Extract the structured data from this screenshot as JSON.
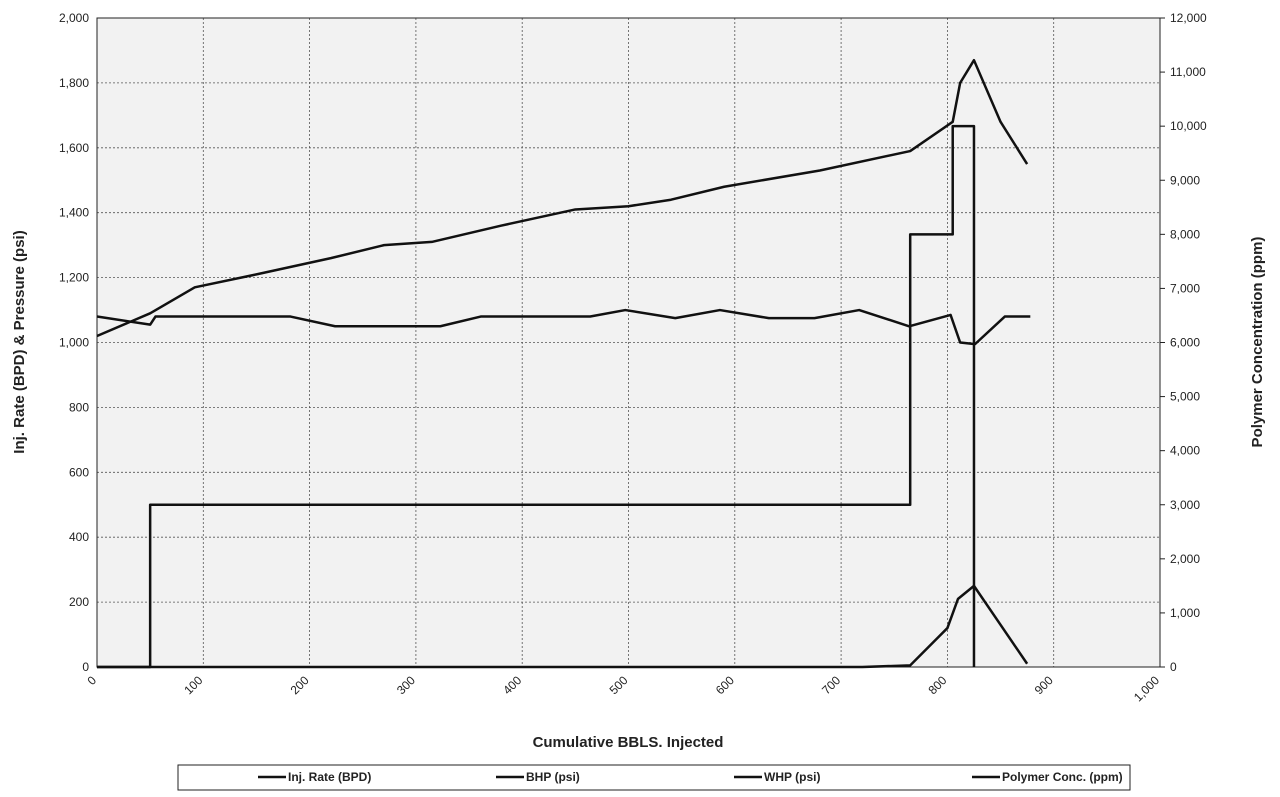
{
  "chart_data": {
    "type": "line",
    "xlabel": "Cumulative BBLS. Injected",
    "ylabel": "Inj. Rate (BPD) & Pressure (psi)",
    "y2label": "Polymer Concentration (ppm)",
    "xlim": [
      0,
      1000
    ],
    "xticks": [
      0,
      100,
      200,
      300,
      400,
      500,
      600,
      700,
      800,
      900,
      {
        "value": 1000,
        "label": "1,000"
      }
    ],
    "ylim": [
      0,
      2000
    ],
    "yticks": [
      0,
      200,
      400,
      600,
      800,
      {
        "value": 1000,
        "label": "1,000"
      },
      {
        "value": 1200,
        "label": "1,200"
      },
      {
        "value": 1400,
        "label": "1,400"
      },
      {
        "value": 1600,
        "label": "1,600"
      },
      {
        "value": 1800,
        "label": "1,800"
      },
      {
        "value": 2000,
        "label": "2,000"
      }
    ],
    "y2lim": [
      0,
      12000
    ],
    "y2ticks": [
      0,
      {
        "value": 1000,
        "label": "1,000"
      },
      {
        "value": 2000,
        "label": "2,000"
      },
      {
        "value": 3000,
        "label": "3,000"
      },
      {
        "value": 4000,
        "label": "4,000"
      },
      {
        "value": 5000,
        "label": "5,000"
      },
      {
        "value": 6000,
        "label": "6,000"
      },
      {
        "value": 7000,
        "label": "7,000"
      },
      {
        "value": 8000,
        "label": "8,000"
      },
      {
        "value": 9000,
        "label": "9,000"
      },
      {
        "value": 10000,
        "label": "10,000"
      },
      {
        "value": 11000,
        "label": "11,000"
      },
      {
        "value": 12000,
        "label": "12,000"
      }
    ],
    "grid": true,
    "legend": "bottom",
    "series": [
      {
        "name": "Inj. Rate (BPD)",
        "color": "#111111",
        "x": [
          0,
          50,
          55,
          182,
          224,
          323,
          361,
          464,
          497,
          544,
          586,
          632,
          675,
          717,
          764,
          803,
          812,
          826,
          854,
          878
        ],
        "values": [
          1080,
          1055,
          1080,
          1080,
          1050,
          1050,
          1080,
          1080,
          1100,
          1075,
          1100,
          1075,
          1075,
          1100,
          1050,
          1085,
          1000,
          995,
          1080,
          1080
        ]
      },
      {
        "name": "BHP (psi)",
        "color": "#111111",
        "x": [
          0,
          50,
          92,
          150,
          220,
          270,
          315,
          380,
          450,
          500,
          540,
          590,
          680,
          765,
          805,
          812,
          825,
          850,
          875
        ],
        "values": [
          1020,
          1090,
          1170,
          1210,
          1260,
          1300,
          1310,
          1360,
          1410,
          1420,
          1440,
          1480,
          1530,
          1590,
          1680,
          1800,
          1870,
          1680,
          1550
        ]
      },
      {
        "name": "WHP (psi)",
        "color": "#111111",
        "x": [
          0,
          720,
          765,
          800,
          810,
          825,
          850,
          875
        ],
        "values": [
          0,
          0,
          5,
          120,
          210,
          250,
          130,
          10
        ]
      },
      {
        "name": "Polymer Conc. (ppm)",
        "color": "#111111",
        "axis": "y2",
        "x": [
          0,
          50,
          50,
          765,
          765,
          805,
          805,
          825,
          825
        ],
        "values": [
          0,
          0,
          3000,
          3000,
          8000,
          8000,
          10000,
          10000,
          0
        ]
      }
    ]
  }
}
